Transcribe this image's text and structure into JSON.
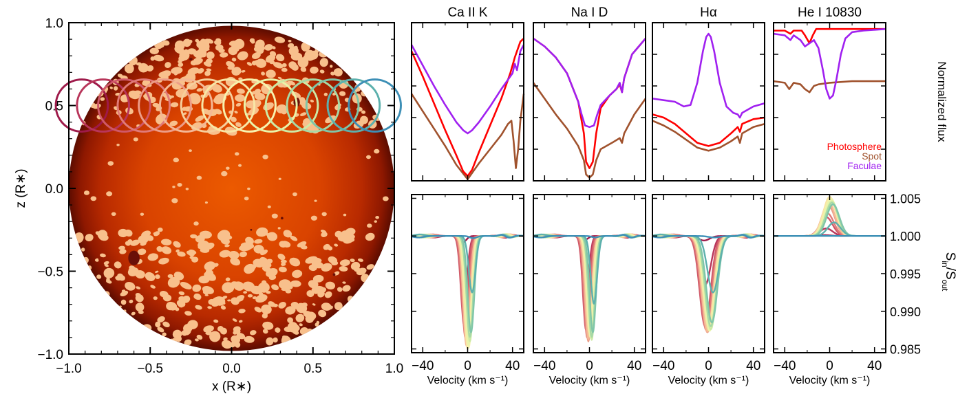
{
  "chart_data": [
    {
      "type": "scatter",
      "xlabel": "x (R∗)",
      "ylabel": "z (R∗)",
      "xlim": [
        -1.0,
        1.0
      ],
      "ylim": [
        -1.0,
        1.0
      ],
      "xticks": [
        "−1.0",
        "−0.5",
        "0.0",
        "0.5",
        "1.0"
      ],
      "yticks": [
        "−1.0",
        "−0.5",
        "0.0",
        "0.5",
        "1.0"
      ],
      "xtick_values": [
        -1.0,
        -0.5,
        0.0,
        0.5,
        1.0
      ],
      "ytick_values": [
        -1.0,
        -0.5,
        0.0,
        0.5,
        1.0
      ],
      "star_radius": 1.0,
      "planet_radius": 0.16,
      "transit_z": 0.5,
      "transit_x": [
        -0.92,
        -0.79,
        -0.66,
        -0.54,
        -0.41,
        -0.28,
        -0.15,
        -0.02,
        0.11,
        0.24,
        0.37,
        0.5,
        0.62,
        0.75,
        0.88
      ],
      "transit_colors": [
        "#9e1a4a",
        "#b8355a",
        "#cf5868",
        "#e07a78",
        "#ec9d88",
        "#f4b896",
        "#f6cf9c",
        "#f8e6a6",
        "#f7f2ae",
        "#e9f4aa",
        "#cdeaa6",
        "#a7d9a6",
        "#80c6a8",
        "#5cb0ad",
        "#3d8fb6"
      ],
      "colors": {
        "photosphere": "#e84e00",
        "limb": "#7a1500",
        "faculae": "#f8c08c",
        "spot": "#6a1008"
      }
    },
    {
      "type": "line",
      "panels": [
        {
          "title": "Ca II K",
          "xlim": [
            -50,
            50
          ]
        },
        {
          "title": "Na I D",
          "xlim": [
            -50,
            50
          ]
        },
        {
          "title": "Hα",
          "xlim": [
            -50,
            50
          ]
        },
        {
          "title": "He I 10830",
          "xlim": [
            -50,
            50
          ]
        }
      ],
      "top_ylabel": "Normalized flux",
      "legend": [
        "Photosphere",
        "Spot",
        "Faculae"
      ],
      "legend_colors": [
        "#ff0000",
        "#a0522d",
        "#a020f0"
      ],
      "legend_placement": "bottom-right of He I 10830 panel",
      "top_series": {
        "Ca II K": {
          "Photosphere": [
            [
              -50,
              0.82
            ],
            [
              -40,
              0.66
            ],
            [
              -30,
              0.49
            ],
            [
              -20,
              0.32
            ],
            [
              -10,
              0.16
            ],
            [
              -4,
              0.06
            ],
            [
              0,
              0.03
            ],
            [
              4,
              0.07
            ],
            [
              10,
              0.18
            ],
            [
              20,
              0.35
            ],
            [
              30,
              0.52
            ],
            [
              38,
              0.68
            ],
            [
              42,
              0.78
            ],
            [
              44,
              0.82
            ],
            [
              47,
              0.88
            ],
            [
              50,
              0.9
            ]
          ],
          "Spot": [
            [
              -50,
              0.55
            ],
            [
              -40,
              0.44
            ],
            [
              -30,
              0.33
            ],
            [
              -20,
              0.22
            ],
            [
              -10,
              0.1
            ],
            [
              0,
              0.01
            ],
            [
              10,
              0.11
            ],
            [
              20,
              0.2
            ],
            [
              30,
              0.29
            ],
            [
              36,
              0.36
            ],
            [
              39,
              0.38
            ],
            [
              41,
              0.25
            ],
            [
              43,
              0.08
            ],
            [
              45,
              0.2
            ],
            [
              47,
              0.38
            ],
            [
              50,
              0.55
            ]
          ],
          "Faculae": [
            [
              -50,
              0.86
            ],
            [
              -40,
              0.73
            ],
            [
              -30,
              0.6
            ],
            [
              -20,
              0.48
            ],
            [
              -10,
              0.37
            ],
            [
              -4,
              0.32
            ],
            [
              0,
              0.3
            ],
            [
              4,
              0.32
            ],
            [
              10,
              0.37
            ],
            [
              20,
              0.47
            ],
            [
              30,
              0.58
            ],
            [
              38,
              0.66
            ],
            [
              40,
              0.68
            ],
            [
              42,
              0.74
            ],
            [
              44,
              0.7
            ],
            [
              47,
              0.82
            ],
            [
              50,
              0.86
            ]
          ]
        },
        "Na I D": {
          "Photosphere": [
            [
              -50,
              0.9
            ],
            [
              -40,
              0.85
            ],
            [
              -30,
              0.78
            ],
            [
              -20,
              0.68
            ],
            [
              -10,
              0.5
            ],
            [
              -5,
              0.3
            ],
            [
              -3,
              0.12
            ],
            [
              0,
              0.08
            ],
            [
              3,
              0.12
            ],
            [
              6,
              0.3
            ],
            [
              10,
              0.46
            ],
            [
              18,
              0.54
            ],
            [
              24,
              0.58
            ],
            [
              27,
              0.61
            ],
            [
              29,
              0.56
            ],
            [
              31,
              0.65
            ],
            [
              38,
              0.8
            ],
            [
              50,
              0.9
            ]
          ],
          "Spot": [
            [
              -50,
              0.62
            ],
            [
              -40,
              0.52
            ],
            [
              -30,
              0.42
            ],
            [
              -20,
              0.33
            ],
            [
              -10,
              0.22
            ],
            [
              -5,
              0.13
            ],
            [
              -3,
              0.04
            ],
            [
              0,
              0.02
            ],
            [
              3,
              0.04
            ],
            [
              6,
              0.13
            ],
            [
              10,
              0.2
            ],
            [
              20,
              0.24
            ],
            [
              27,
              0.27
            ],
            [
              29,
              0.24
            ],
            [
              31,
              0.3
            ],
            [
              40,
              0.42
            ],
            [
              50,
              0.52
            ]
          ],
          "Faculae": [
            [
              -50,
              0.9
            ],
            [
              -40,
              0.85
            ],
            [
              -30,
              0.78
            ],
            [
              -20,
              0.68
            ],
            [
              -10,
              0.5
            ],
            [
              -7,
              0.42
            ],
            [
              -4,
              0.35
            ],
            [
              0,
              0.34
            ],
            [
              4,
              0.35
            ],
            [
              7,
              0.42
            ],
            [
              10,
              0.48
            ],
            [
              18,
              0.54
            ],
            [
              24,
              0.58
            ],
            [
              27,
              0.62
            ],
            [
              29,
              0.56
            ],
            [
              31,
              0.65
            ],
            [
              38,
              0.8
            ],
            [
              50,
              0.9
            ]
          ]
        },
        "Hα": {
          "Photosphere": [
            [
              -50,
              0.42
            ],
            [
              -40,
              0.4
            ],
            [
              -30,
              0.36
            ],
            [
              -20,
              0.3
            ],
            [
              -10,
              0.24
            ],
            [
              0,
              0.22
            ],
            [
              10,
              0.24
            ],
            [
              20,
              0.3
            ],
            [
              26,
              0.34
            ],
            [
              28,
              0.31
            ],
            [
              30,
              0.36
            ],
            [
              40,
              0.39
            ],
            [
              50,
              0.4
            ]
          ],
          "Spot": [
            [
              -50,
              0.38
            ],
            [
              -40,
              0.35
            ],
            [
              -30,
              0.31
            ],
            [
              -20,
              0.26
            ],
            [
              -10,
              0.21
            ],
            [
              0,
              0.19
            ],
            [
              10,
              0.21
            ],
            [
              20,
              0.25
            ],
            [
              26,
              0.28
            ],
            [
              28,
              0.24
            ],
            [
              30,
              0.3
            ],
            [
              40,
              0.34
            ],
            [
              50,
              0.36
            ]
          ],
          "Faculae": [
            [
              -50,
              0.52
            ],
            [
              -40,
              0.51
            ],
            [
              -30,
              0.5
            ],
            [
              -22,
              0.47
            ],
            [
              -16,
              0.48
            ],
            [
              -10,
              0.62
            ],
            [
              -5,
              0.82
            ],
            [
              -2,
              0.91
            ],
            [
              0,
              0.93
            ],
            [
              2,
              0.91
            ],
            [
              5,
              0.82
            ],
            [
              10,
              0.62
            ],
            [
              16,
              0.47
            ],
            [
              22,
              0.43
            ],
            [
              26,
              0.42
            ],
            [
              28,
              0.4
            ],
            [
              30,
              0.43
            ],
            [
              40,
              0.47
            ],
            [
              50,
              0.49
            ]
          ]
        },
        "He I 10830": {
          "Photosphere": [
            [
              -50,
              0.95
            ],
            [
              -40,
              0.95
            ],
            [
              -35,
              0.93
            ],
            [
              -32,
              0.95
            ],
            [
              -25,
              0.95
            ],
            [
              -22,
              0.92
            ],
            [
              -18,
              0.87
            ],
            [
              -15,
              0.92
            ],
            [
              -12,
              0.96
            ],
            [
              0,
              0.96
            ],
            [
              20,
              0.96
            ],
            [
              50,
              0.96
            ]
          ],
          "Spot": [
            [
              -50,
              0.63
            ],
            [
              -40,
              0.62
            ],
            [
              -36,
              0.58
            ],
            [
              -32,
              0.62
            ],
            [
              -26,
              0.61
            ],
            [
              -22,
              0.58
            ],
            [
              -18,
              0.56
            ],
            [
              -14,
              0.6
            ],
            [
              -10,
              0.61
            ],
            [
              0,
              0.62
            ],
            [
              20,
              0.63
            ],
            [
              50,
              0.63
            ]
          ],
          "Faculae": [
            [
              -50,
              0.93
            ],
            [
              -40,
              0.92
            ],
            [
              -35,
              0.89
            ],
            [
              -32,
              0.92
            ],
            [
              -26,
              0.89
            ],
            [
              -22,
              0.85
            ],
            [
              -18,
              0.87
            ],
            [
              -14,
              0.89
            ],
            [
              -10,
              0.84
            ],
            [
              -6,
              0.7
            ],
            [
              -3,
              0.58
            ],
            [
              0,
              0.52
            ],
            [
              3,
              0.54
            ],
            [
              6,
              0.64
            ],
            [
              10,
              0.8
            ],
            [
              14,
              0.9
            ],
            [
              20,
              0.94
            ],
            [
              30,
              0.95
            ],
            [
              50,
              0.96
            ]
          ]
        }
      },
      "bottom_ylabel": "S_in/S_out",
      "bottom_ylim": [
        0.9845,
        1.0055
      ],
      "bottom_yticks": [
        "0.985",
        "0.990",
        "0.995",
        "1.000",
        "1.005"
      ],
      "bottom_ytick_values": [
        0.985,
        0.99,
        0.995,
        1.0,
        1.005
      ],
      "bottom_xlabel": "Velocity (km s⁻¹)",
      "bottom_xticks": [
        "−40",
        "0",
        "40"
      ],
      "bottom_xtick_values": [
        -40,
        0,
        40
      ],
      "bottom_series": {
        "depths": {
          "Ca II K": [
            0.0008,
            0.0075,
            0.012,
            0.0135,
            0.0142,
            0.0146,
            0.0148,
            0.015,
            0.0148,
            0.0145,
            0.014,
            0.0134,
            0.0128,
            0.0075,
            0.0003
          ],
          "Na I D": [
            0.0005,
            0.007,
            0.0125,
            0.0135,
            0.014,
            0.0137,
            0.0133,
            0.0128,
            0.0132,
            0.0135,
            0.0138,
            0.0134,
            0.0128,
            0.009,
            0.0002
          ],
          "Hα": [
            0.0006,
            0.0065,
            0.012,
            0.0125,
            0.0128,
            0.0127,
            0.0125,
            0.012,
            0.0124,
            0.0126,
            0.0124,
            0.012,
            0.0115,
            0.0075,
            0.0002
          ],
          "He I 10830": [
            -0.0001,
            -0.001,
            -0.0025,
            -0.003,
            -0.004,
            -0.0045,
            -0.005,
            -0.0052,
            -0.005,
            -0.0048,
            -0.0046,
            -0.0044,
            -0.0042,
            -0.0018,
            0.0
          ]
        },
        "centers_kms": [
          -4,
          -3,
          -3,
          -2,
          -1,
          -1,
          0,
          0,
          1,
          1,
          2,
          2,
          3,
          4,
          5
        ],
        "widths_kms": {
          "Ca II K": 4.2,
          "Na I D": 4.0,
          "Hα": 7.0,
          "He I 10830": 8.0
        }
      }
    }
  ]
}
